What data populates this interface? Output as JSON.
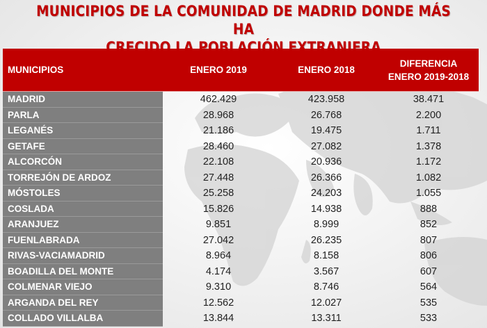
{
  "title": {
    "line1": "MUNICIPIOS DE LA COMUNIDAD DE MADRID DONDE MÁS HA",
    "line2": "CRECIDO LA POBLACIÓN EXTRANJERA"
  },
  "colors": {
    "accent": "#c00000",
    "name_column": "#7f7f7f",
    "header_text": "#ffffff"
  },
  "table": {
    "headers": {
      "municipio": "MUNICIPIOS",
      "enero_2019": "ENERO 2019",
      "enero_2018": "ENERO 2018",
      "diferencia_line1": "DIFERENCIA",
      "diferencia_line2": "ENERO 2019-2018"
    },
    "rows": [
      {
        "municipio": "MADRID",
        "enero_2019": "462.429",
        "enero_2018": "423.958",
        "diferencia": "38.471"
      },
      {
        "municipio": "PARLA",
        "enero_2019": "28.968",
        "enero_2018": "26.768",
        "diferencia": "2.200"
      },
      {
        "municipio": "LEGANÉS",
        "enero_2019": "21.186",
        "enero_2018": "19.475",
        "diferencia": "1.711"
      },
      {
        "municipio": "GETAFE",
        "enero_2019": "28.460",
        "enero_2018": "27.082",
        "diferencia": "1.378"
      },
      {
        "municipio": "ALCORCÓN",
        "enero_2019": "22.108",
        "enero_2018": "20.936",
        "diferencia": "1.172"
      },
      {
        "municipio": "TORREJÓN DE ARDOZ",
        "enero_2019": "27.448",
        "enero_2018": "26.366",
        "diferencia": "1.082"
      },
      {
        "municipio": "MÓSTOLES",
        "enero_2019": "25.258",
        "enero_2018": "24.203",
        "diferencia": "1.055"
      },
      {
        "municipio": "COSLADA",
        "enero_2019": "15.826",
        "enero_2018": "14.938",
        "diferencia": "888"
      },
      {
        "municipio": "ARANJUEZ",
        "enero_2019": "9.851",
        "enero_2018": "8.999",
        "diferencia": "852"
      },
      {
        "municipio": "FUENLABRADA",
        "enero_2019": "27.042",
        "enero_2018": "26.235",
        "diferencia": "807"
      },
      {
        "municipio": "RIVAS-VACIAMADRID",
        "enero_2019": "8.964",
        "enero_2018": "8.158",
        "diferencia": "806"
      },
      {
        "municipio": "BOADILLA DEL MONTE",
        "enero_2019": "4.174",
        "enero_2018": "3.567",
        "diferencia": "607"
      },
      {
        "municipio": "COLMENAR VIEJO",
        "enero_2019": "9.310",
        "enero_2018": "8.746",
        "diferencia": "564"
      },
      {
        "municipio": "ARGANDA DEL REY",
        "enero_2019": "12.562",
        "enero_2018": "12.027",
        "diferencia": "535"
      },
      {
        "municipio": "COLLADO VILLALBA",
        "enero_2019": "13.844",
        "enero_2018": "13.311",
        "diferencia": "533"
      }
    ]
  }
}
